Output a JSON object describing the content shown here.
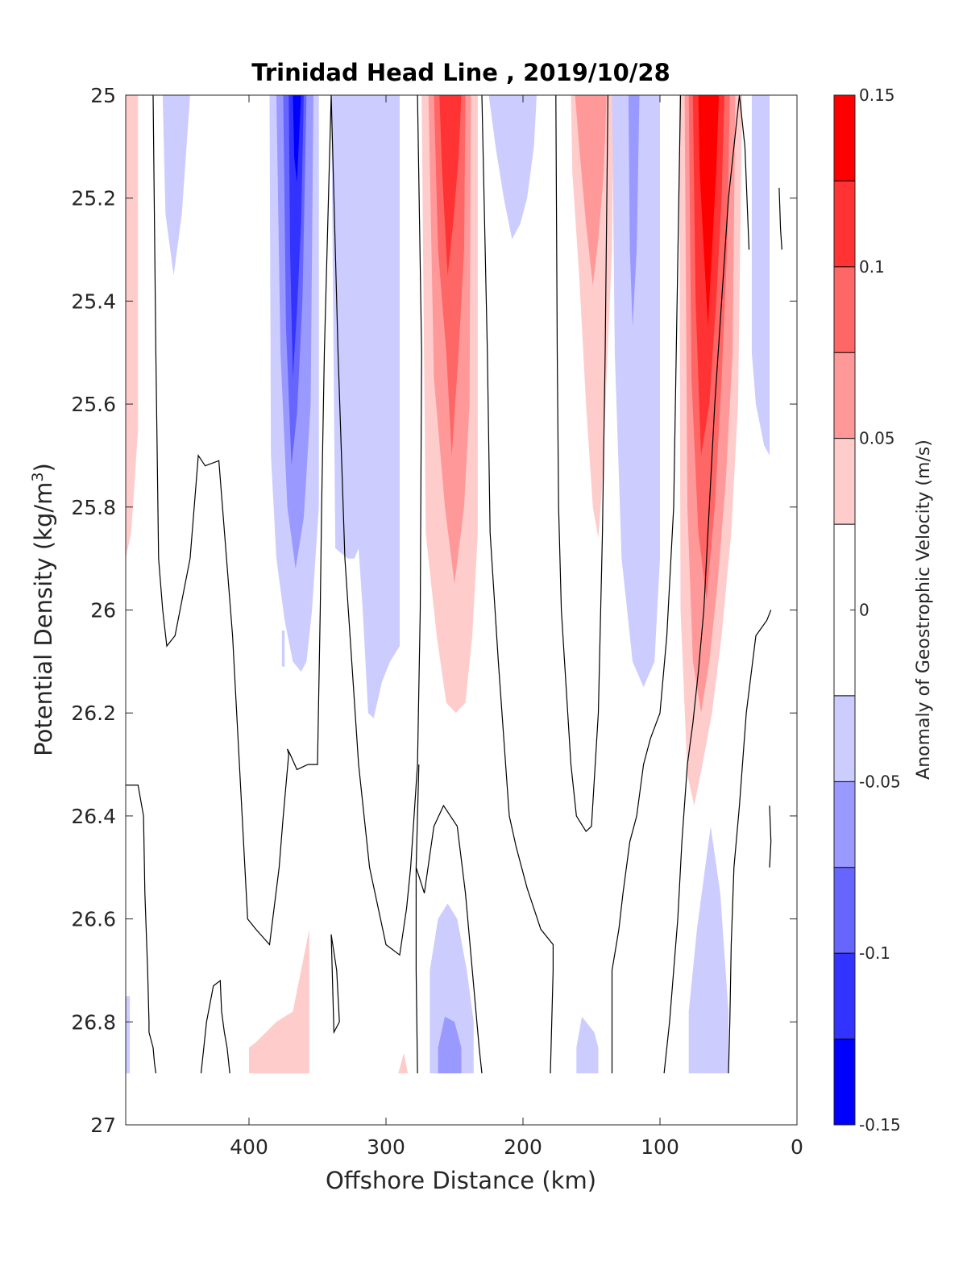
{
  "chart_data": {
    "type": "heatmap",
    "subtype": "filled-contour section",
    "title": "Trinidad Head Line , 2019/10/28",
    "xlabel": "Offshore Distance (km)",
    "ylabel_main": "Potential Density (kg/m",
    "ylabel_sup": "3",
    "ylabel_close": ")",
    "xlim": [
      490,
      0
    ],
    "x_reversed": true,
    "ylim": [
      25,
      27
    ],
    "y_reversed": true,
    "x_ticks": [
      400,
      300,
      200,
      100,
      0
    ],
    "x_tick_labels": [
      "400",
      "300",
      "200",
      "100",
      "0"
    ],
    "y_ticks": [
      25,
      25.2,
      25.4,
      25.6,
      25.8,
      26,
      26.2,
      26.4,
      26.6,
      26.8,
      27
    ],
    "y_tick_labels": [
      "25",
      "25.2",
      "25.4",
      "25.6",
      "25.8",
      "26",
      "26.2",
      "26.4",
      "26.6",
      "26.8",
      "27"
    ],
    "data_bottom_density": 26.9,
    "grid": false,
    "colorbar": {
      "label": "Anomaly of Geostrophic Velocity (m/s)",
      "placement": "right",
      "range": [
        -0.15,
        0.15
      ],
      "levels": [
        -0.15,
        -0.125,
        -0.1,
        -0.075,
        -0.05,
        -0.025,
        0.025,
        0.05,
        0.075,
        0.1,
        0.125,
        0.15
      ],
      "colors": [
        "#0000ff",
        "#3333ff",
        "#6666ff",
        "#9999ff",
        "#ccccff",
        "#ffffff",
        "#ffcccc",
        "#ff9999",
        "#ff6666",
        "#ff3333",
        "#ff0000"
      ],
      "ticks": [
        0.15,
        0.1,
        0.05,
        0,
        -0.05,
        -0.1,
        -0.15
      ],
      "tick_labels": [
        "0.15",
        "0.1",
        "0.05",
        "0",
        "-0.05",
        "-0.1",
        "-0.15"
      ]
    },
    "features": [
      {
        "name": "pos-edge-480",
        "level": 1,
        "x": [
          490,
          481,
          481,
          486,
          490
        ],
        "y": [
          25,
          25,
          25.65,
          25.85,
          25.9
        ]
      },
      {
        "name": "neg-453",
        "level": -1,
        "x": [
          463,
          443,
          449,
          455,
          461
        ],
        "y": [
          25,
          25,
          25.23,
          25.35,
          25.23
        ]
      },
      {
        "name": "neg-368-l1",
        "level": -1,
        "x": [
          385,
          349,
          349,
          354,
          358,
          362,
          368,
          374,
          380,
          384
        ],
        "y": [
          25,
          25,
          25.8,
          26.0,
          26.1,
          26.12,
          26.1,
          26.02,
          25.9,
          25.7
        ]
      },
      {
        "name": "neg-368-l2",
        "level": -2,
        "x": [
          380,
          353,
          355,
          360,
          366,
          372,
          377
        ],
        "y": [
          25,
          25,
          25.6,
          25.82,
          25.92,
          25.8,
          25.5
        ]
      },
      {
        "name": "neg-368-l3",
        "level": -3,
        "x": [
          375,
          358,
          361,
          365,
          369,
          373
        ],
        "y": [
          25,
          25,
          25.4,
          25.62,
          25.72,
          25.45
        ]
      },
      {
        "name": "neg-368-l4",
        "level": -4,
        "x": [
          371,
          360,
          362,
          365,
          368,
          370
        ],
        "y": [
          25,
          25,
          25.25,
          25.42,
          25.55,
          25.3
        ]
      },
      {
        "name": "neg-368-l5",
        "level": -5,
        "x": [
          368,
          362,
          365,
          367
        ],
        "y": [
          25,
          25,
          25.17,
          25.12
        ]
      },
      {
        "name": "neg-313",
        "level": -1,
        "x": [
          340,
          290,
          290,
          297,
          303,
          309,
          313,
          317,
          320,
          323,
          328,
          337
        ],
        "y": [
          25,
          25,
          26.07,
          26.1,
          26.14,
          26.21,
          26.2,
          26.0,
          25.88,
          25.9,
          25.9,
          25.88
        ]
      },
      {
        "name": "pos-255-l1",
        "level": 1,
        "x": [
          274,
          233,
          233,
          237,
          242,
          249,
          256,
          263,
          271
        ],
        "y": [
          25,
          25,
          25.85,
          26.05,
          26.18,
          26.2,
          26.18,
          26.05,
          25.85
        ]
      },
      {
        "name": "pos-255-l2",
        "level": 2,
        "x": [
          269,
          238,
          239,
          243,
          250,
          257,
          265
        ],
        "y": [
          25,
          25,
          25.6,
          25.8,
          25.95,
          25.8,
          25.55
        ]
      },
      {
        "name": "pos-255-l3",
        "level": 3,
        "x": [
          265,
          242,
          243,
          247,
          252,
          256,
          262
        ],
        "y": [
          25,
          25,
          25.3,
          25.5,
          25.7,
          25.5,
          25.3
        ]
      },
      {
        "name": "pos-255-l4",
        "level": 4,
        "x": [
          261,
          245,
          247,
          251,
          255,
          259
        ],
        "y": [
          25,
          25,
          25.12,
          25.25,
          25.35,
          25.15
        ]
      },
      {
        "name": "neg-205",
        "level": -1,
        "x": [
          225,
          190,
          192,
          197,
          202,
          208,
          214,
          220
        ],
        "y": [
          25,
          25,
          25.1,
          25.2,
          25.25,
          25.28,
          25.2,
          25.1
        ]
      },
      {
        "name": "pos-152-l1",
        "level": 1,
        "x": [
          165,
          134,
          135,
          139,
          142,
          145,
          149,
          154,
          159,
          164
        ],
        "y": [
          25,
          25,
          25.3,
          25.55,
          25.75,
          25.86,
          25.8,
          25.6,
          25.35,
          25.15
        ]
      },
      {
        "name": "pos-152-l2",
        "level": 2,
        "x": [
          162,
          139,
          141,
          145,
          149,
          154,
          159
        ],
        "y": [
          25,
          25,
          25.15,
          25.28,
          25.37,
          25.25,
          25.1
        ]
      },
      {
        "name": "neg-122-l1",
        "level": -1,
        "x": [
          135,
          100,
          100,
          104,
          112,
          120,
          128,
          133
        ],
        "y": [
          25,
          25,
          25.9,
          26.1,
          26.15,
          26.1,
          25.9,
          25.5
        ]
      },
      {
        "name": "neg-122-l2",
        "level": -2,
        "x": [
          123,
          115,
          117,
          120,
          122
        ],
        "y": [
          25,
          25,
          25.3,
          25.45,
          25.3
        ]
      },
      {
        "name": "pos-62-l1",
        "level": 1,
        "x": [
          86,
          40,
          43,
          48,
          55,
          62,
          69,
          75,
          80,
          85
        ],
        "y": [
          25,
          25,
          25.6,
          25.85,
          26.05,
          26.2,
          26.3,
          26.38,
          26.32,
          26.0
        ]
      },
      {
        "name": "pos-62-l2",
        "level": 2,
        "x": [
          82,
          45,
          47,
          52,
          58,
          64,
          70,
          76,
          80
        ],
        "y": [
          25,
          25,
          25.5,
          25.75,
          25.95,
          26.1,
          26.2,
          26.1,
          25.8
        ]
      },
      {
        "name": "pos-62-l3",
        "level": 3,
        "x": [
          79,
          49,
          51,
          55,
          60,
          66,
          72,
          77
        ],
        "y": [
          25,
          25,
          25.3,
          25.55,
          25.8,
          25.98,
          25.85,
          25.55
        ]
      },
      {
        "name": "pos-62-l4",
        "level": 4,
        "x": [
          76,
          53,
          55,
          59,
          64,
          70,
          74
        ],
        "y": [
          25,
          25,
          25.2,
          25.4,
          25.6,
          25.7,
          25.4
        ]
      },
      {
        "name": "pos-62-l5",
        "level": 5,
        "x": [
          72,
          57,
          59,
          62,
          65,
          68,
          71
        ],
        "y": [
          25,
          25,
          25.15,
          25.3,
          25.45,
          25.3,
          25.15
        ]
      },
      {
        "name": "neg-22",
        "level": -1,
        "x": [
          33,
          20,
          20,
          24,
          30,
          33
        ],
        "y": [
          25,
          25,
          25.7,
          25.68,
          25.6,
          25.5
        ]
      },
      {
        "name": "neg-bottom-left",
        "level": -1,
        "x": [
          490,
          487,
          487,
          490
        ],
        "y": [
          26.75,
          26.75,
          26.9,
          26.9
        ]
      },
      {
        "name": "neg-375",
        "level": -1,
        "x": [
          376,
          374,
          374,
          376
        ],
        "y": [
          26.04,
          26.04,
          26.11,
          26.11
        ]
      },
      {
        "name": "pos-bottom-380",
        "level": 1,
        "x": [
          400,
          395,
          380,
          368,
          356,
          356,
          360,
          366,
          371,
          376,
          384,
          392,
          400
        ],
        "y": [
          26.85,
          26.84,
          26.8,
          26.78,
          26.62,
          26.9,
          26.9,
          26.9,
          26.9,
          26.9,
          26.9,
          26.9,
          26.9
        ]
      },
      {
        "name": "pos-bottom-290",
        "level": 1,
        "x": [
          291,
          287,
          284,
          294
        ],
        "y": [
          26.9,
          26.86,
          26.9,
          26.9
        ]
      },
      {
        "name": "neg-bottom-255-l1",
        "level": -1,
        "x": [
          268,
          262,
          255,
          248,
          241,
          236,
          236,
          268
        ],
        "y": [
          26.7,
          26.6,
          26.57,
          26.6,
          26.7,
          26.8,
          26.9,
          26.9
        ]
      },
      {
        "name": "neg-bottom-255-l2",
        "level": -2,
        "x": [
          262,
          257,
          250,
          245,
          245,
          262
        ],
        "y": [
          26.85,
          26.79,
          26.8,
          26.85,
          26.9,
          26.9
        ]
      },
      {
        "name": "neg-bottom-150",
        "level": -1,
        "x": [
          161,
          157,
          148,
          145,
          145,
          161
        ],
        "y": [
          26.85,
          26.79,
          26.82,
          26.85,
          26.9,
          26.9
        ]
      },
      {
        "name": "neg-bottom-65",
        "level": -1,
        "x": [
          79,
          73,
          68,
          63,
          56,
          50,
          50,
          79
        ],
        "y": [
          26.78,
          26.62,
          26.52,
          26.42,
          26.55,
          26.78,
          26.9,
          26.9
        ]
      }
    ],
    "zero_contours": [
      {
        "x": [
          470,
          468,
          466,
          463,
          460,
          454,
          443,
          437,
          432,
          422,
          412,
          403,
          401,
          395,
          385,
          378,
          375,
          371,
          372,
          370,
          365,
          357
        ],
        "y": [
          25,
          25.5,
          25.9,
          26.0,
          26.07,
          26.05,
          25.9,
          25.7,
          25.72,
          25.71,
          26.05,
          26.5,
          26.6,
          26.62,
          26.65,
          26.5,
          26.4,
          26.28,
          26.27,
          26.28,
          26.31,
          26.3
        ]
      },
      {
        "x": [
          357,
          350,
          348,
          347,
          345,
          340,
          335,
          330,
          325,
          320,
          312,
          300,
          290,
          285,
          282,
          277,
          275
        ],
        "y": [
          26.3,
          26.3,
          26.0,
          25.8,
          25.5,
          25.0,
          25.5,
          25.9,
          26.1,
          26.3,
          26.5,
          26.65,
          26.67,
          26.58,
          26.5,
          26.3,
          26.0
        ]
      },
      {
        "x": [
          275,
          274,
          277
        ],
        "y": [
          26.0,
          25.5,
          25.0
        ]
      },
      {
        "x": [
          490,
          481,
          477,
          476,
          474,
          473,
          473,
          470,
          469,
          468
        ],
        "y": [
          26.34,
          26.34,
          26.4,
          26.55,
          26.7,
          26.8,
          26.82,
          26.85,
          26.88,
          26.9
        ]
      },
      {
        "x": [
          435,
          431,
          426,
          421,
          420,
          418,
          416,
          414
        ],
        "y": [
          26.9,
          26.8,
          26.73,
          26.72,
          26.78,
          26.82,
          26.85,
          26.9
        ]
      },
      {
        "x": [
          340,
          336,
          334,
          338,
          340
        ],
        "y": [
          26.63,
          26.7,
          26.8,
          26.82,
          26.63
        ]
      },
      {
        "x": [
          277,
          278,
          278,
          276
        ],
        "y": [
          26.9,
          26.7,
          26.5,
          26.3
        ]
      },
      {
        "x": [
          230,
          226,
          224,
          218,
          210,
          205,
          197,
          187,
          178,
          178,
          179,
          180
        ],
        "y": [
          25.0,
          25.5,
          25.85,
          26.1,
          26.4,
          26.46,
          26.54,
          26.62,
          26.65,
          26.7,
          26.8,
          26.9
        ]
      },
      {
        "x": [
          278,
          272,
          265,
          258,
          248,
          242,
          237,
          232,
          230
        ],
        "y": [
          26.5,
          26.55,
          26.42,
          26.38,
          26.42,
          26.55,
          26.7,
          26.85,
          26.9
        ]
      },
      {
        "x": [
          138,
          140,
          142,
          145,
          150,
          154,
          161,
          165,
          172,
          174,
          175,
          176
        ],
        "y": [
          25.0,
          25.5,
          25.85,
          26.2,
          26.42,
          26.43,
          26.4,
          26.3,
          26.0,
          25.8,
          25.5,
          25.0
        ]
      },
      {
        "x": [
          135,
          135,
          130,
          127,
          122,
          117,
          112,
          107,
          100,
          95,
          90,
          85
        ],
        "y": [
          26.9,
          26.7,
          26.62,
          26.55,
          26.45,
          26.4,
          26.3,
          26.25,
          26.2,
          26.05,
          25.8,
          25.0
        ]
      },
      {
        "x": [
          97,
          93,
          90,
          87,
          84,
          80,
          76,
          72,
          68,
          64,
          60,
          55,
          50,
          42,
          38,
          35
        ],
        "y": [
          26.9,
          26.8,
          26.7,
          26.6,
          26.45,
          26.3,
          26.22,
          26.12,
          26.0,
          25.8,
          25.6,
          25.4,
          25.2,
          25.0,
          25.1,
          25.3
        ]
      },
      {
        "x": [
          19,
          22,
          30,
          37,
          42,
          46,
          48,
          49,
          50
        ],
        "y": [
          26.0,
          26.02,
          26.05,
          26.2,
          26.38,
          26.5,
          26.65,
          26.8,
          26.9
        ]
      },
      {
        "x": [
          13,
          12,
          11
        ],
        "y": [
          25.18,
          25.26,
          25.3
        ]
      },
      {
        "x": [
          20,
          19,
          20
        ],
        "y": [
          26.38,
          26.45,
          26.5
        ]
      }
    ]
  }
}
